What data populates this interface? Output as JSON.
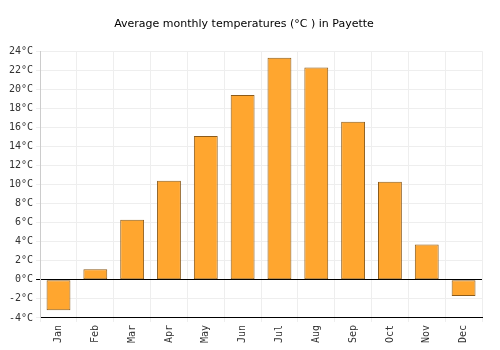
{
  "chart_data": {
    "type": "bar",
    "title": "Average monthly temperatures (°C ) in Payette",
    "categories": [
      "Jan",
      "Feb",
      "Mar",
      "Apr",
      "May",
      "Jun",
      "Jul",
      "Aug",
      "Sep",
      "Oct",
      "Nov",
      "Dec"
    ],
    "values": [
      -3.2,
      1.1,
      6.3,
      10.4,
      15.1,
      19.4,
      23.3,
      22.3,
      16.6,
      10.3,
      3.7,
      -1.7
    ],
    "color": "#ffa62f",
    "ylim": [
      -4,
      24
    ],
    "yticks": [
      {
        "value": -4,
        "label": "-4°C"
      },
      {
        "value": -2,
        "label": "-2°C"
      },
      {
        "value": 0,
        "label": "0°C"
      },
      {
        "value": 2,
        "label": "2°C"
      },
      {
        "value": 4,
        "label": "4°C"
      },
      {
        "value": 6,
        "label": "6°C"
      },
      {
        "value": 8,
        "label": "8°C"
      },
      {
        "value": 10,
        "label": "10°C"
      },
      {
        "value": 12,
        "label": "12°C"
      },
      {
        "value": 14,
        "label": "14°C"
      },
      {
        "value": 16,
        "label": "16°C"
      },
      {
        "value": 18,
        "label": "18°C"
      },
      {
        "value": 20,
        "label": "20°C"
      },
      {
        "value": 22,
        "label": "22°C"
      },
      {
        "value": 24,
        "label": "24°C"
      }
    ],
    "grid": true
  }
}
